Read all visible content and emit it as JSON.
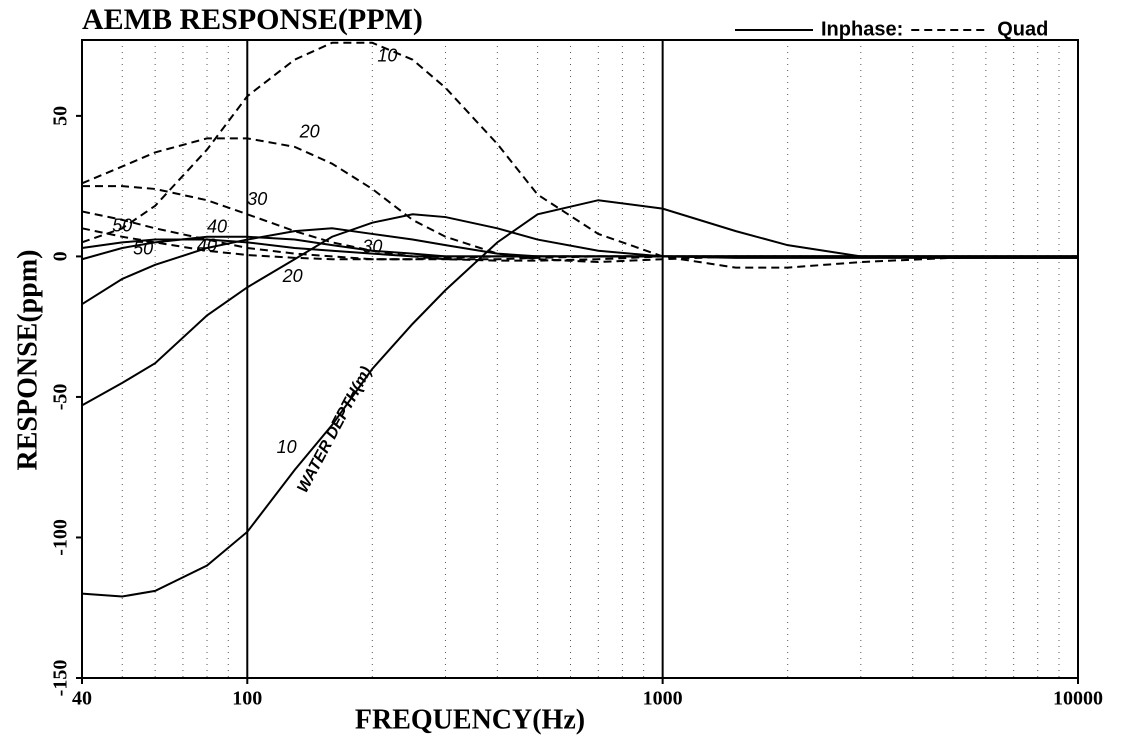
{
  "chart_data": {
    "type": "line",
    "title": "AEMB RESPONSE(PPM)",
    "x_label": "FREQUENCY(Hz)",
    "y_label": "RESPONSE(ppm)",
    "log_x": true,
    "xlim": [
      40,
      10000
    ],
    "ylim": [
      -150,
      77
    ],
    "xticks": [
      40,
      100,
      1000,
      10000
    ],
    "yticks": [
      -150,
      -100,
      -50,
      0,
      50
    ],
    "xgrid_minor": [
      50,
      60,
      70,
      80,
      90,
      200,
      300,
      400,
      500,
      600,
      700,
      800,
      900,
      2000,
      3000,
      4000,
      5000,
      6000,
      7000,
      8000,
      9000
    ],
    "xgrid_major": [
      100,
      1000
    ],
    "color": "#000000",
    "legend": [
      {
        "label": "Inphase:",
        "style": "solid"
      },
      {
        "label": "Quad",
        "style": "dashed"
      }
    ],
    "annotation": "WATER DEPTH(m)",
    "x": [
      40,
      50,
      60,
      80,
      100,
      130,
      160,
      200,
      250,
      300,
      400,
      500,
      700,
      1000,
      1500,
      2000,
      3000,
      5000,
      10000
    ],
    "series": [
      {
        "name": "10",
        "style": "solid",
        "values": [
          -120,
          -121,
          -119,
          -110,
          -98,
          -76,
          -60,
          -40,
          -24,
          -12,
          5,
          15,
          20,
          17,
          9,
          4,
          0,
          -0.5,
          -0.5
        ]
      },
      {
        "name": "20",
        "style": "solid",
        "values": [
          -53,
          -45,
          -38,
          -21,
          -11,
          -1,
          7,
          12,
          15,
          14,
          10,
          6,
          2,
          0,
          -0.5,
          -0.5,
          -0.5,
          -0.5,
          -0.5
        ]
      },
      {
        "name": "30",
        "style": "solid",
        "values": [
          -17,
          -8,
          -3,
          3,
          6,
          9,
          10,
          8,
          6,
          4,
          1,
          0,
          0,
          0,
          0,
          0,
          0,
          0,
          0
        ]
      },
      {
        "name": "40",
        "style": "solid",
        "values": [
          -1,
          3,
          5,
          7,
          7,
          6,
          4,
          2,
          1,
          0,
          0,
          0,
          0,
          0,
          0,
          0,
          0,
          0,
          0
        ]
      },
      {
        "name": "50",
        "style": "solid",
        "values": [
          3,
          5,
          6,
          6,
          5,
          3,
          2,
          1,
          0,
          0,
          0,
          0,
          0,
          0,
          0,
          0,
          0,
          0,
          0
        ]
      },
      {
        "name": "10",
        "style": "dashed",
        "values": [
          5,
          10,
          18,
          38,
          57,
          70,
          76,
          76,
          70,
          60,
          40,
          22,
          8,
          0,
          -4,
          -4,
          -2,
          -0.5,
          0
        ]
      },
      {
        "name": "20",
        "style": "dashed",
        "values": [
          26,
          32,
          37,
          42,
          42,
          39,
          33,
          24,
          13,
          7,
          1,
          -1,
          -2,
          -1,
          0,
          0,
          0,
          0,
          0
        ]
      },
      {
        "name": "30",
        "style": "dashed",
        "values": [
          25,
          25,
          24,
          20,
          15,
          9,
          5,
          2,
          0,
          -1,
          -1.5,
          -1.5,
          -1,
          0,
          0,
          0,
          0,
          0,
          0
        ]
      },
      {
        "name": "40",
        "style": "dashed",
        "values": [
          16,
          13,
          10,
          6,
          3,
          1,
          0,
          -1,
          -1,
          -1,
          -1,
          -0.5,
          0,
          0,
          0,
          0,
          0,
          0,
          0
        ]
      },
      {
        "name": "50",
        "style": "dashed",
        "values": [
          10,
          7,
          5,
          2,
          0.5,
          -0.5,
          -1,
          -1,
          -1,
          -0.5,
          0,
          0,
          0,
          0,
          0,
          0,
          0,
          0,
          0
        ]
      }
    ]
  }
}
